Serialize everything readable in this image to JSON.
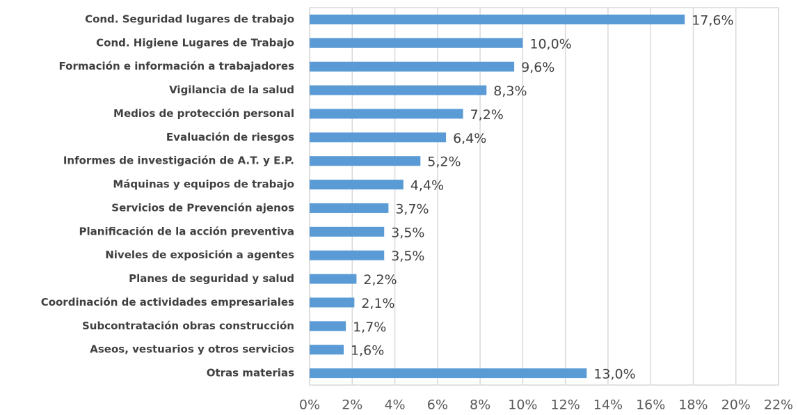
{
  "chart_data": {
    "type": "bar",
    "orientation": "horizontal",
    "categories": [
      "Cond. Seguridad lugares de trabajo",
      "Cond. Higiene Lugares de Trabajo",
      "Formación e información a trabajadores",
      "Vigilancia de la salud",
      "Medios de protección personal",
      "Evaluación de riesgos",
      "Informes de investigación de A.T. y E.P.",
      "Máquinas y equipos de trabajo",
      "Servicios de Prevención ajenos",
      "Planificación de la acción preventiva",
      "Niveles de exposición a agentes",
      "Planes de seguridad y salud",
      "Coordinación de actividades empresariales",
      "Subcontratación obras construcción",
      "Aseos, vestuarios y otros servicios",
      "Otras materias"
    ],
    "values": [
      17.6,
      10.0,
      9.6,
      8.3,
      7.2,
      6.4,
      5.2,
      4.4,
      3.7,
      3.5,
      3.5,
      2.2,
      2.1,
      1.7,
      1.6,
      13.0
    ],
    "value_labels": [
      "17,6%",
      "10,0%",
      "9,6%",
      "8,3%",
      "7,2%",
      "6,4%",
      "5,2%",
      "4,4%",
      "3,7%",
      "3,5%",
      "3,5%",
      "2,2%",
      "2,1%",
      "1,7%",
      "1,6%",
      "13,0%"
    ],
    "color": "#5b9bd5",
    "xlim": [
      0,
      22
    ],
    "xticks": [
      {
        "value": 0,
        "label": "0%"
      },
      {
        "value": 2,
        "label": "2%"
      },
      {
        "value": 4,
        "label": "4%"
      },
      {
        "value": 6,
        "label": "6%"
      },
      {
        "value": 8,
        "label": "8%"
      },
      {
        "value": 10,
        "label": "10%"
      },
      {
        "value": 12,
        "label": "12%"
      },
      {
        "value": 14,
        "label": "14%"
      },
      {
        "value": 16,
        "label": "16%"
      },
      {
        "value": 18,
        "label": "18%"
      },
      {
        "value": 20,
        "label": "20%"
      },
      {
        "value": 22,
        "label": "22%"
      }
    ],
    "grid": true
  }
}
